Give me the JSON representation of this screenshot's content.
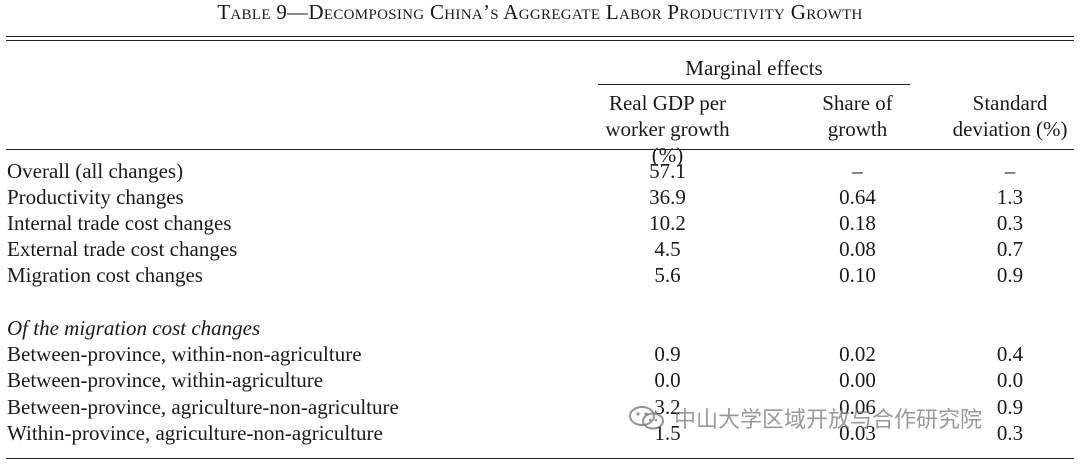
{
  "title": "Table 9—Decomposing China’s Aggregate Labor Productivity Growth",
  "headers": {
    "group_label": "Marginal effects",
    "col1_line1": "Real GDP per",
    "col1_line2": "worker growth (%)",
    "col2_line1": "Share of",
    "col2_line2": "growth",
    "col3_line1": "Standard",
    "col3_line2": "deviation (%)"
  },
  "rows": [
    {
      "label": "Overall (all changes)",
      "c1": "57.1",
      "c2": "–",
      "c3": "–"
    },
    {
      "label": "Productivity changes",
      "c1": "36.9",
      "c2": "0.64",
      "c3": "1.3"
    },
    {
      "label": "Internal trade cost changes",
      "c1": "10.2",
      "c2": "0.18",
      "c3": "0.3"
    },
    {
      "label": "External trade cost changes",
      "c1": "4.5",
      "c2": "0.08",
      "c3": "0.7"
    },
    {
      "label": "Migration cost changes",
      "c1": "5.6",
      "c2": "0.10",
      "c3": "0.9"
    }
  ],
  "section_label": "Of the migration cost changes",
  "migration_rows": [
    {
      "label": "Between-province, within-non-agriculture",
      "c1": "0.9",
      "c2": "0.02",
      "c3": "0.4"
    },
    {
      "label": "Between-province, within-agriculture",
      "c1": "0.0",
      "c2": "0.00",
      "c3": "0.0"
    },
    {
      "label": "Between-province, agriculture-non-agriculture",
      "c1": "3.2",
      "c2": "0.06",
      "c3": "0.9"
    },
    {
      "label": "Within-province, agriculture-non-agriculture",
      "c1": "1.5",
      "c2": "0.03",
      "c3": "0.3"
    }
  ],
  "watermark": {
    "text": "中山大学区域开放与合作研究院",
    "icon": "wechat-icon"
  }
}
